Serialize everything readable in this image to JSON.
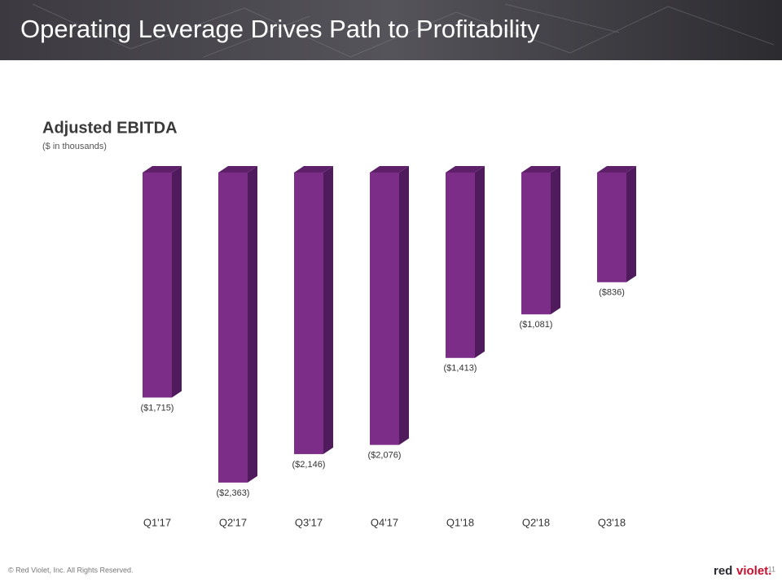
{
  "header": {
    "title": "Operating Leverage Drives Path to Profitability"
  },
  "chart_data": {
    "type": "bar3d",
    "title": "Adjusted EBITDA",
    "subtitle": "($ in thousands)",
    "categories": [
      "Q1'17",
      "Q2'17",
      "Q3'17",
      "Q4'17",
      "Q1'18",
      "Q2'18",
      "Q3'18"
    ],
    "values": [
      -1715,
      -2363,
      -2146,
      -2076,
      -1413,
      -1081,
      -836
    ],
    "value_labels": [
      "($1,715)",
      "($2,363)",
      "($2,146)",
      "($2,076)",
      "($1,413)",
      "($1,081)",
      "($836)"
    ],
    "color": "#7b2d87",
    "ylim": [
      -2500,
      0
    ]
  },
  "footer": {
    "copyright": "© Red Violet, Inc. All Rights Reserved.",
    "page_number": "11",
    "logo": [
      "red",
      "violet."
    ]
  }
}
